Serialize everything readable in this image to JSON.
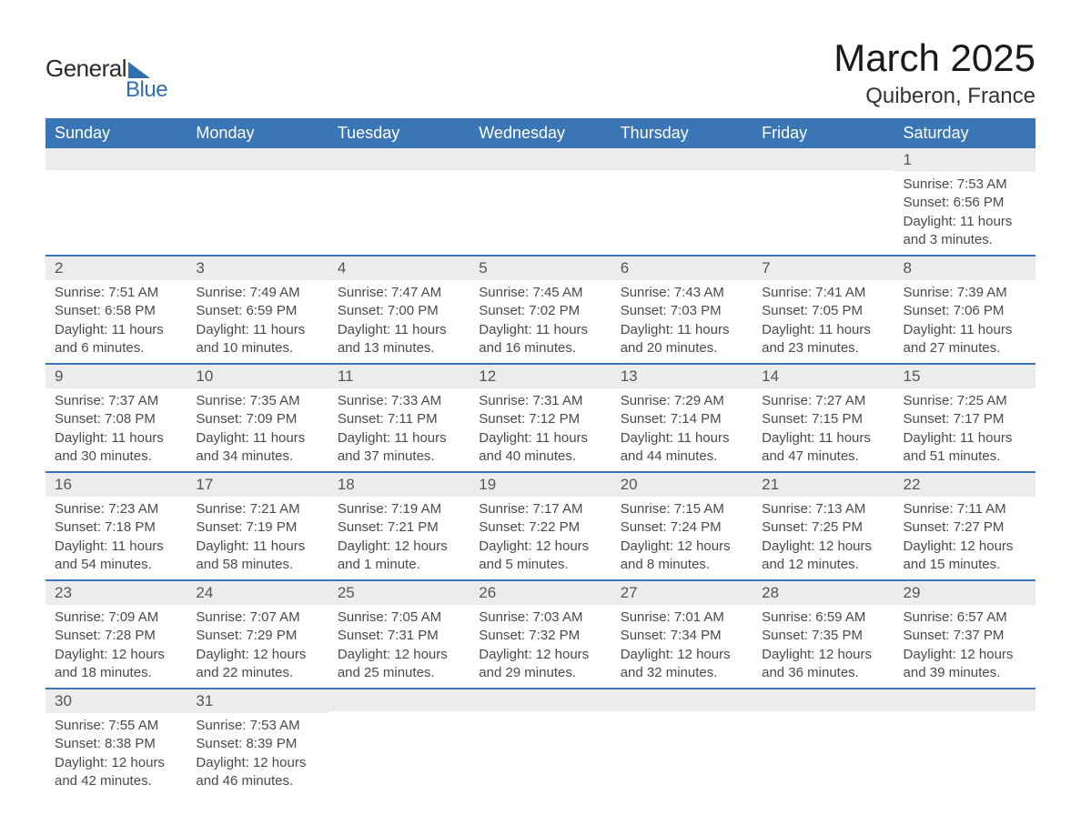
{
  "logo": {
    "text1": "General",
    "text2": "Blue"
  },
  "title": {
    "month": "March 2025",
    "location": "Quiberon, France"
  },
  "colors": {
    "header_bg": "#3a76b5",
    "header_text": "#ffffff",
    "daynum_bg": "#ececec",
    "daynum_text": "#555555",
    "body_text": "#4a4a4a",
    "border": "#3a76b5",
    "logo_accent": "#2f6fae"
  },
  "weekdays": [
    "Sunday",
    "Monday",
    "Tuesday",
    "Wednesday",
    "Thursday",
    "Friday",
    "Saturday"
  ],
  "weeks": [
    [
      {
        "num": "",
        "sunrise": "",
        "sunset": "",
        "daylight": ""
      },
      {
        "num": "",
        "sunrise": "",
        "sunset": "",
        "daylight": ""
      },
      {
        "num": "",
        "sunrise": "",
        "sunset": "",
        "daylight": ""
      },
      {
        "num": "",
        "sunrise": "",
        "sunset": "",
        "daylight": ""
      },
      {
        "num": "",
        "sunrise": "",
        "sunset": "",
        "daylight": ""
      },
      {
        "num": "",
        "sunrise": "",
        "sunset": "",
        "daylight": ""
      },
      {
        "num": "1",
        "sunrise": "Sunrise: 7:53 AM",
        "sunset": "Sunset: 6:56 PM",
        "daylight": "Daylight: 11 hours and 3 minutes."
      }
    ],
    [
      {
        "num": "2",
        "sunrise": "Sunrise: 7:51 AM",
        "sunset": "Sunset: 6:58 PM",
        "daylight": "Daylight: 11 hours and 6 minutes."
      },
      {
        "num": "3",
        "sunrise": "Sunrise: 7:49 AM",
        "sunset": "Sunset: 6:59 PM",
        "daylight": "Daylight: 11 hours and 10 minutes."
      },
      {
        "num": "4",
        "sunrise": "Sunrise: 7:47 AM",
        "sunset": "Sunset: 7:00 PM",
        "daylight": "Daylight: 11 hours and 13 minutes."
      },
      {
        "num": "5",
        "sunrise": "Sunrise: 7:45 AM",
        "sunset": "Sunset: 7:02 PM",
        "daylight": "Daylight: 11 hours and 16 minutes."
      },
      {
        "num": "6",
        "sunrise": "Sunrise: 7:43 AM",
        "sunset": "Sunset: 7:03 PM",
        "daylight": "Daylight: 11 hours and 20 minutes."
      },
      {
        "num": "7",
        "sunrise": "Sunrise: 7:41 AM",
        "sunset": "Sunset: 7:05 PM",
        "daylight": "Daylight: 11 hours and 23 minutes."
      },
      {
        "num": "8",
        "sunrise": "Sunrise: 7:39 AM",
        "sunset": "Sunset: 7:06 PM",
        "daylight": "Daylight: 11 hours and 27 minutes."
      }
    ],
    [
      {
        "num": "9",
        "sunrise": "Sunrise: 7:37 AM",
        "sunset": "Sunset: 7:08 PM",
        "daylight": "Daylight: 11 hours and 30 minutes."
      },
      {
        "num": "10",
        "sunrise": "Sunrise: 7:35 AM",
        "sunset": "Sunset: 7:09 PM",
        "daylight": "Daylight: 11 hours and 34 minutes."
      },
      {
        "num": "11",
        "sunrise": "Sunrise: 7:33 AM",
        "sunset": "Sunset: 7:11 PM",
        "daylight": "Daylight: 11 hours and 37 minutes."
      },
      {
        "num": "12",
        "sunrise": "Sunrise: 7:31 AM",
        "sunset": "Sunset: 7:12 PM",
        "daylight": "Daylight: 11 hours and 40 minutes."
      },
      {
        "num": "13",
        "sunrise": "Sunrise: 7:29 AM",
        "sunset": "Sunset: 7:14 PM",
        "daylight": "Daylight: 11 hours and 44 minutes."
      },
      {
        "num": "14",
        "sunrise": "Sunrise: 7:27 AM",
        "sunset": "Sunset: 7:15 PM",
        "daylight": "Daylight: 11 hours and 47 minutes."
      },
      {
        "num": "15",
        "sunrise": "Sunrise: 7:25 AM",
        "sunset": "Sunset: 7:17 PM",
        "daylight": "Daylight: 11 hours and 51 minutes."
      }
    ],
    [
      {
        "num": "16",
        "sunrise": "Sunrise: 7:23 AM",
        "sunset": "Sunset: 7:18 PM",
        "daylight": "Daylight: 11 hours and 54 minutes."
      },
      {
        "num": "17",
        "sunrise": "Sunrise: 7:21 AM",
        "sunset": "Sunset: 7:19 PM",
        "daylight": "Daylight: 11 hours and 58 minutes."
      },
      {
        "num": "18",
        "sunrise": "Sunrise: 7:19 AM",
        "sunset": "Sunset: 7:21 PM",
        "daylight": "Daylight: 12 hours and 1 minute."
      },
      {
        "num": "19",
        "sunrise": "Sunrise: 7:17 AM",
        "sunset": "Sunset: 7:22 PM",
        "daylight": "Daylight: 12 hours and 5 minutes."
      },
      {
        "num": "20",
        "sunrise": "Sunrise: 7:15 AM",
        "sunset": "Sunset: 7:24 PM",
        "daylight": "Daylight: 12 hours and 8 minutes."
      },
      {
        "num": "21",
        "sunrise": "Sunrise: 7:13 AM",
        "sunset": "Sunset: 7:25 PM",
        "daylight": "Daylight: 12 hours and 12 minutes."
      },
      {
        "num": "22",
        "sunrise": "Sunrise: 7:11 AM",
        "sunset": "Sunset: 7:27 PM",
        "daylight": "Daylight: 12 hours and 15 minutes."
      }
    ],
    [
      {
        "num": "23",
        "sunrise": "Sunrise: 7:09 AM",
        "sunset": "Sunset: 7:28 PM",
        "daylight": "Daylight: 12 hours and 18 minutes."
      },
      {
        "num": "24",
        "sunrise": "Sunrise: 7:07 AM",
        "sunset": "Sunset: 7:29 PM",
        "daylight": "Daylight: 12 hours and 22 minutes."
      },
      {
        "num": "25",
        "sunrise": "Sunrise: 7:05 AM",
        "sunset": "Sunset: 7:31 PM",
        "daylight": "Daylight: 12 hours and 25 minutes."
      },
      {
        "num": "26",
        "sunrise": "Sunrise: 7:03 AM",
        "sunset": "Sunset: 7:32 PM",
        "daylight": "Daylight: 12 hours and 29 minutes."
      },
      {
        "num": "27",
        "sunrise": "Sunrise: 7:01 AM",
        "sunset": "Sunset: 7:34 PM",
        "daylight": "Daylight: 12 hours and 32 minutes."
      },
      {
        "num": "28",
        "sunrise": "Sunrise: 6:59 AM",
        "sunset": "Sunset: 7:35 PM",
        "daylight": "Daylight: 12 hours and 36 minutes."
      },
      {
        "num": "29",
        "sunrise": "Sunrise: 6:57 AM",
        "sunset": "Sunset: 7:37 PM",
        "daylight": "Daylight: 12 hours and 39 minutes."
      }
    ],
    [
      {
        "num": "30",
        "sunrise": "Sunrise: 7:55 AM",
        "sunset": "Sunset: 8:38 PM",
        "daylight": "Daylight: 12 hours and 42 minutes."
      },
      {
        "num": "31",
        "sunrise": "Sunrise: 7:53 AM",
        "sunset": "Sunset: 8:39 PM",
        "daylight": "Daylight: 12 hours and 46 minutes."
      },
      {
        "num": "",
        "sunrise": "",
        "sunset": "",
        "daylight": ""
      },
      {
        "num": "",
        "sunrise": "",
        "sunset": "",
        "daylight": ""
      },
      {
        "num": "",
        "sunrise": "",
        "sunset": "",
        "daylight": ""
      },
      {
        "num": "",
        "sunrise": "",
        "sunset": "",
        "daylight": ""
      },
      {
        "num": "",
        "sunrise": "",
        "sunset": "",
        "daylight": ""
      }
    ]
  ]
}
